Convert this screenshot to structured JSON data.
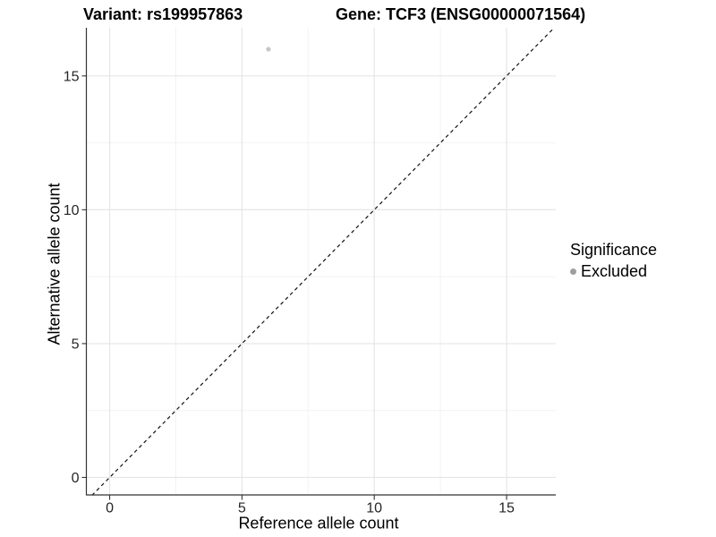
{
  "colors": {
    "background": "#ffffff",
    "axis_line": "#333333",
    "grid_major": "#e6e6e6",
    "grid_minor": "#f2f2f2",
    "identity_line": "#111111",
    "point": "#c6c6c6",
    "legend_dot": "#9e9e9e",
    "tick_text": "#262626",
    "title_text": "#000000"
  },
  "chart_data": {
    "type": "scatter",
    "title_left": "Variant: rs199957863",
    "title_right": "Gene: TCF3 (ENSG00000071564)",
    "xlabel": "Reference allele count",
    "ylabel": "Alternative allele count",
    "xticks": [
      0,
      5,
      10,
      15
    ],
    "yticks": [
      0,
      5,
      10,
      15
    ],
    "minor_xticks": [
      2.5,
      7.5,
      12.5
    ],
    "minor_yticks": [
      2.5,
      7.5,
      12.5
    ],
    "xlim": [
      -0.88,
      16.86
    ],
    "ylim": [
      -0.67,
      16.8
    ],
    "grid": true,
    "identity_line": {
      "slope": 1,
      "intercept": 0,
      "style": "dashed"
    },
    "points": [
      {
        "x": 6,
        "y": 16,
        "series": "Excluded"
      }
    ],
    "legend": {
      "position": "right",
      "title": "Significance",
      "items": [
        {
          "label": "Excluded",
          "marker": "circle"
        }
      ]
    }
  }
}
